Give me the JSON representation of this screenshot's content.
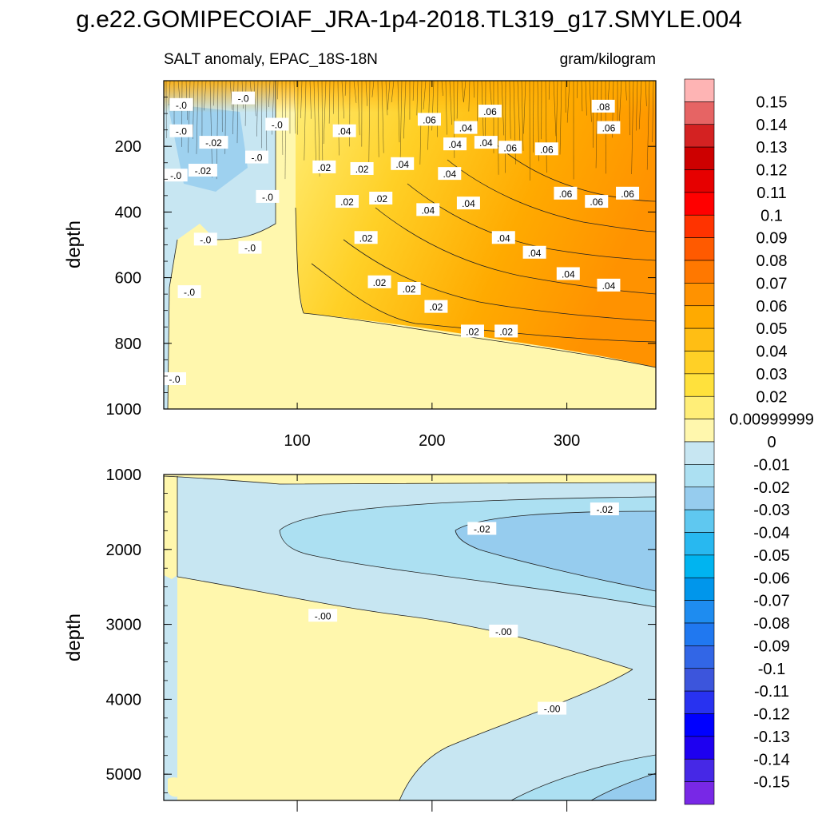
{
  "chart_data": {
    "type": "heatmap",
    "title": "g.e22.GOMIPECOIAF_JRA-1p4-2018.TL319_g17.SMYLE.004",
    "subtitle_left": "SALT anomaly, EPAC_18S-18N",
    "subtitle_right": "gram/kilogram",
    "x_ticks": [
      100,
      200,
      300
    ],
    "xlim": [
      1,
      366
    ],
    "panels": [
      {
        "name": "upper",
        "ylabel": "depth",
        "ylim": [
          0,
          1000
        ],
        "y_ticks": [
          200,
          400,
          600,
          800,
          1000
        ],
        "contour_labels": [
          {
            "x": 14,
            "y": 75,
            "text": "-.0"
          },
          {
            "x": 60,
            "y": 55,
            "text": "-.0"
          },
          {
            "x": 14,
            "y": 155,
            "text": "-.0"
          },
          {
            "x": 38,
            "y": 190,
            "text": "-.02"
          },
          {
            "x": 85,
            "y": 135,
            "text": "-.0"
          },
          {
            "x": 70,
            "y": 235,
            "text": "-.0"
          },
          {
            "x": 30,
            "y": 275,
            "text": "-.02"
          },
          {
            "x": 10,
            "y": 290,
            "text": "-.0"
          },
          {
            "x": 78,
            "y": 355,
            "text": "-.0"
          },
          {
            "x": 32,
            "y": 485,
            "text": "-.0"
          },
          {
            "x": 65,
            "y": 510,
            "text": "-.0"
          },
          {
            "x": 20,
            "y": 645,
            "text": "-.0"
          },
          {
            "x": 9,
            "y": 910,
            "text": "-.0"
          },
          {
            "x": 135,
            "y": 155,
            "text": ".04"
          },
          {
            "x": 120,
            "y": 265,
            "text": ".02"
          },
          {
            "x": 148,
            "y": 270,
            "text": ".02"
          },
          {
            "x": 178,
            "y": 255,
            "text": ".04"
          },
          {
            "x": 198,
            "y": 120,
            "text": ".06"
          },
          {
            "x": 225,
            "y": 145,
            "text": ".04"
          },
          {
            "x": 243,
            "y": 95,
            "text": ".06"
          },
          {
            "x": 217,
            "y": 195,
            "text": ".04"
          },
          {
            "x": 240,
            "y": 190,
            "text": ".04"
          },
          {
            "x": 258,
            "y": 205,
            "text": ".06"
          },
          {
            "x": 285,
            "y": 210,
            "text": ".06"
          },
          {
            "x": 327,
            "y": 80,
            "text": ".08"
          },
          {
            "x": 331,
            "y": 145,
            "text": ".06"
          },
          {
            "x": 213,
            "y": 285,
            "text": ".04"
          },
          {
            "x": 137,
            "y": 370,
            "text": ".02"
          },
          {
            "x": 162,
            "y": 360,
            "text": ".02"
          },
          {
            "x": 197,
            "y": 395,
            "text": ".04"
          },
          {
            "x": 227,
            "y": 375,
            "text": ".04"
          },
          {
            "x": 299,
            "y": 345,
            "text": ".06"
          },
          {
            "x": 322,
            "y": 370,
            "text": ".06"
          },
          {
            "x": 345,
            "y": 345,
            "text": ".06"
          },
          {
            "x": 151,
            "y": 480,
            "text": ".02"
          },
          {
            "x": 253,
            "y": 480,
            "text": ".04"
          },
          {
            "x": 276,
            "y": 525,
            "text": ".04"
          },
          {
            "x": 301,
            "y": 590,
            "text": ".04"
          },
          {
            "x": 331,
            "y": 625,
            "text": ".04"
          },
          {
            "x": 161,
            "y": 615,
            "text": ".02"
          },
          {
            "x": 183,
            "y": 635,
            "text": ".02"
          },
          {
            "x": 203,
            "y": 690,
            "text": ".02"
          },
          {
            "x": 230,
            "y": 765,
            "text": ".02"
          },
          {
            "x": 255,
            "y": 765,
            "text": ".02"
          }
        ]
      },
      {
        "name": "lower",
        "ylabel": "depth",
        "ylim": [
          1000,
          5350
        ],
        "y_ticks": [
          1000,
          2000,
          3000,
          4000,
          5000
        ],
        "contour_labels": [
          {
            "x": 328,
            "y": 1470,
            "text": "-.02"
          },
          {
            "x": 237,
            "y": 1730,
            "text": "-.02"
          },
          {
            "x": 119,
            "y": 2890,
            "text": "-.00"
          },
          {
            "x": 253,
            "y": 3100,
            "text": "-.00"
          },
          {
            "x": 289,
            "y": 4130,
            "text": "-.00"
          }
        ]
      }
    ],
    "colorbar": {
      "labels": [
        "0.15",
        "0.14",
        "0.13",
        "0.12",
        "0.11",
        "0.1",
        "0.09",
        "0.08",
        "0.07",
        "0.06",
        "0.05",
        "0.04",
        "0.03",
        "0.02",
        "0.00999999",
        "0",
        "-0.01",
        "-0.02",
        "-0.03",
        "-0.04",
        "-0.05",
        "-0.06",
        "-0.07",
        "-0.08",
        "-0.09",
        "-0.1",
        "-0.11",
        "-0.12",
        "-0.13",
        "-0.14",
        "-0.15"
      ],
      "colors": [
        "#feb4b4",
        "#e66464",
        "#d42222",
        "#cd0000",
        "#e60000",
        "#ff0000",
        "#ff3300",
        "#ff5a00",
        "#ff7800",
        "#ff9200",
        "#ffaa00",
        "#ffbe14",
        "#ffd026",
        "#ffe13c",
        "#ffee78",
        "#fff7ad",
        "#c7e6f2",
        "#ace0f2",
        "#96ccee",
        "#5fc8f0",
        "#28b8f0",
        "#00b4f0",
        "#0096eb",
        "#1e8cf0",
        "#2078f0",
        "#3266e6",
        "#3c55dc",
        "#2832f0",
        "#0000ff",
        "#1e00f0",
        "#4628e6",
        "#7828e6"
      ]
    }
  }
}
